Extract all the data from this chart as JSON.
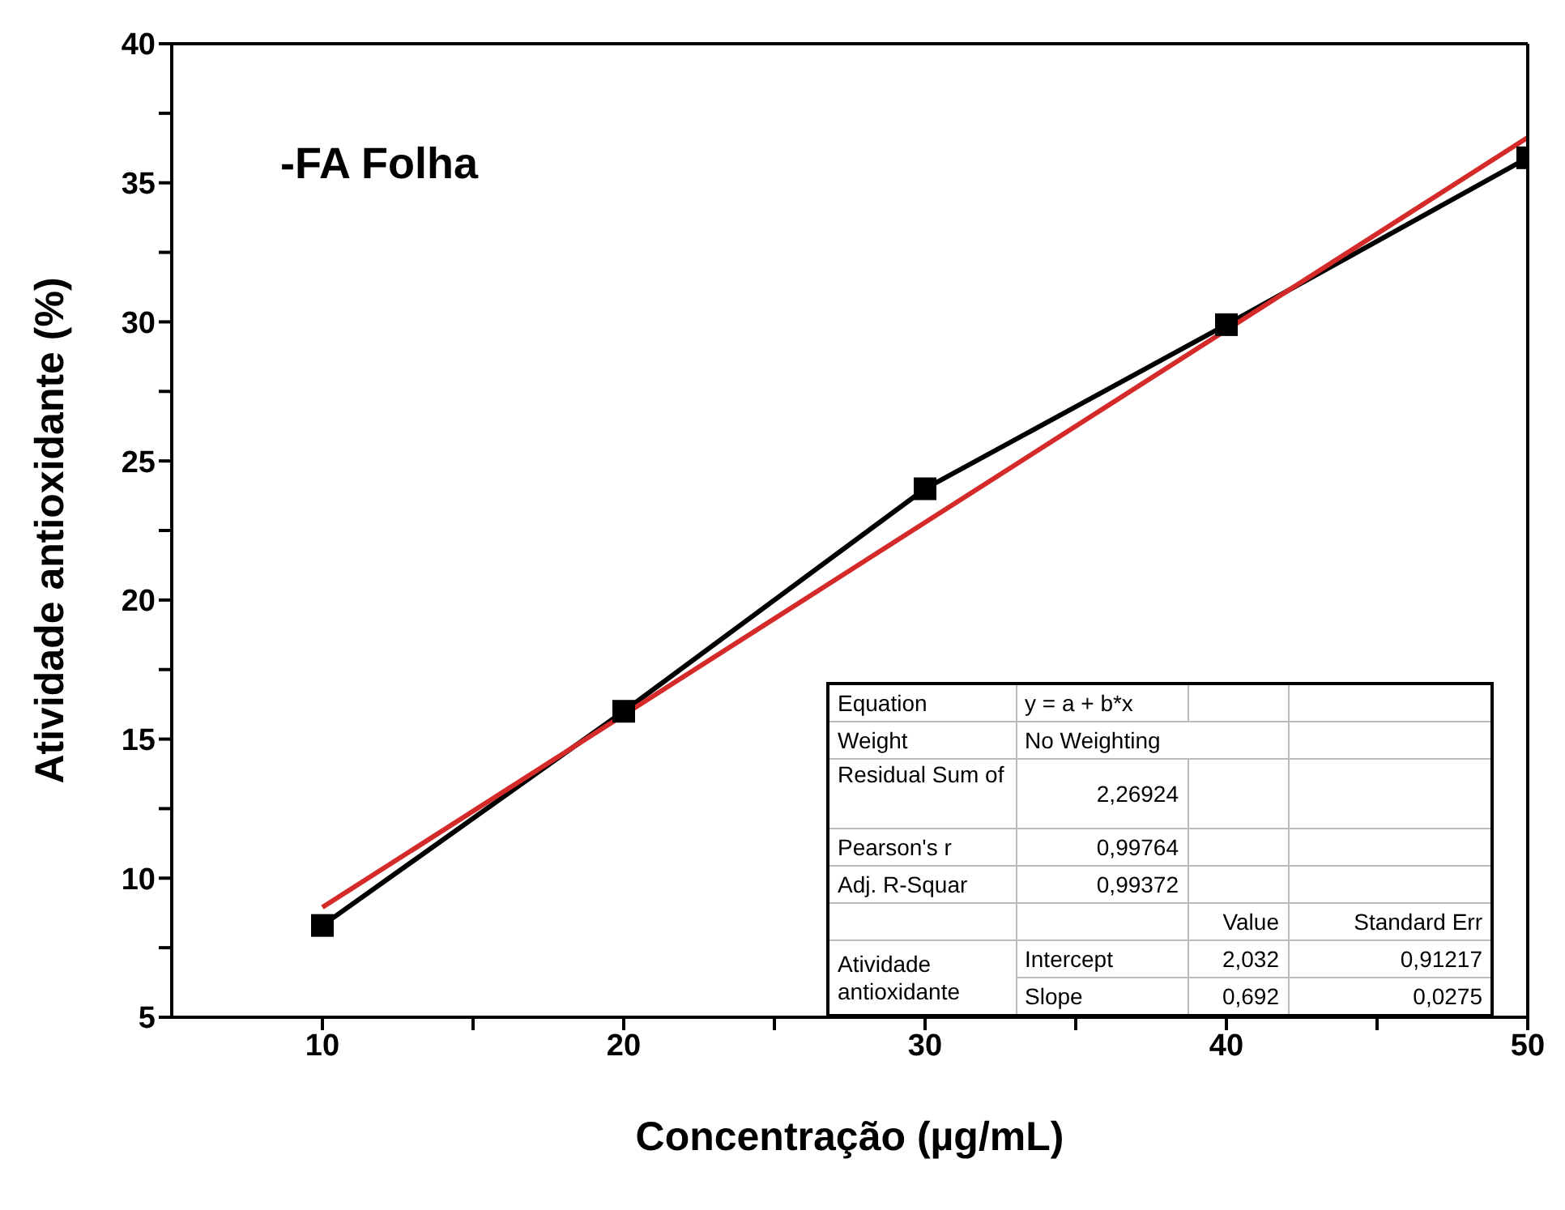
{
  "chart_data": {
    "type": "line",
    "xlabel": "Concentração (µg/mL)",
    "ylabel": "Atividade antioxidante (%)",
    "x": [
      10,
      20,
      30,
      40,
      50
    ],
    "series": [
      {
        "values": [
          8.3,
          16,
          24,
          29.9,
          35.9
        ],
        "color": "#000000",
        "marker": "square"
      },
      {
        "type": "line",
        "x": [
          10,
          50
        ],
        "values": [
          8.95,
          36.63
        ],
        "color": "#d42a2a",
        "marker": "none"
      }
    ],
    "xlim": [
      5,
      50
    ],
    "xticks": [
      10,
      {
        "value": 15,
        "label": null
      },
      20,
      {
        "value": 25,
        "label": null
      },
      30,
      {
        "value": 35,
        "label": null
      },
      40,
      {
        "value": 45,
        "label": null
      },
      50
    ],
    "ylim": [
      5,
      40
    ],
    "yticks": [
      5,
      {
        "value": 7.5,
        "label": null
      },
      10,
      {
        "value": 12.5,
        "label": null
      },
      15,
      {
        "value": 17.5,
        "label": null
      },
      20,
      {
        "value": 22.5,
        "label": null
      },
      25,
      {
        "value": 27.5,
        "label": null
      },
      30,
      {
        "value": 32.5,
        "label": null
      },
      35,
      {
        "value": 37.5,
        "label": null
      },
      40
    ],
    "grid": false,
    "legend": false,
    "annotations": [
      "-FA Folha",
      "Equation",
      "y = a + b*x",
      "Weight",
      "No Weighting",
      "Residual Sum of",
      "2,26924",
      "Pearson's r",
      "0,99764",
      "Adj. R-Squar",
      "0,99372",
      "Value",
      "Standard Err",
      "Atividade antioxidante",
      "Intercept",
      "2,032",
      "0,91217",
      "Slope",
      "0,692",
      "0,0275"
    ]
  }
}
